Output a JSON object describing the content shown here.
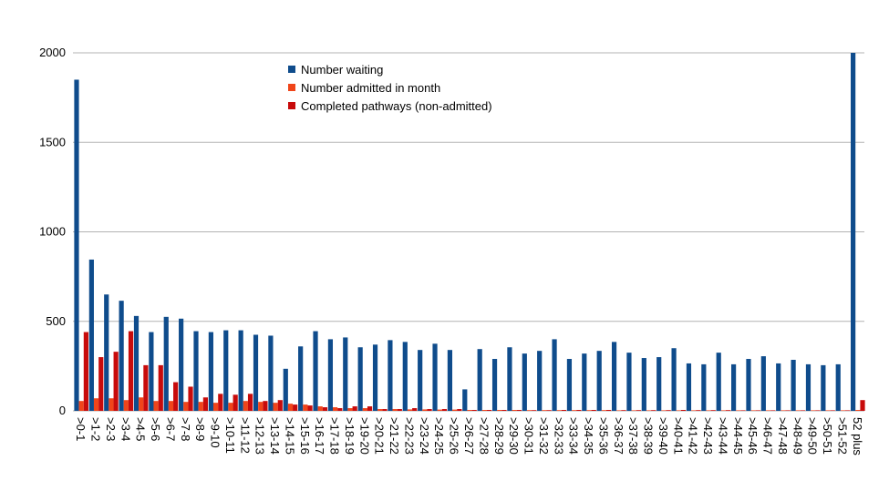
{
  "chart_data": {
    "type": "bar",
    "ylim": [
      0,
      2000
    ],
    "yticks": [
      "0",
      "500",
      "1000",
      "1500",
      "2000"
    ],
    "grid": true,
    "legend_position": "top-center",
    "categories": [
      ">0-1",
      ">1-2",
      ">2-3",
      ">3-4",
      ">4-5",
      ">5-6",
      ">6-7",
      ">7-8",
      ">8-9",
      ">9-10",
      ">10-11",
      ">11-12",
      ">12-13",
      ">13-14",
      ">14-15",
      ">15-16",
      ">16-17",
      ">17-18",
      ">18-19",
      ">19-20",
      ">20-21",
      ">21-22",
      ">22-23",
      ">23-24",
      ">24-25",
      ">25-26",
      ">26-27",
      ">27-28",
      ">28-29",
      ">29-30",
      ">30-31",
      ">31-32",
      ">32-33",
      ">33-34",
      ">34-35",
      ">35-36",
      ">36-37",
      ">37-38",
      ">38-39",
      ">39-40",
      ">40-41",
      ">41-42",
      ">42-43",
      ">43-44",
      ">44-45",
      ">45-46",
      ">46-47",
      ">47-48",
      ">48-49",
      ">49-50",
      ">50-51",
      ">51-52",
      "52 plus"
    ],
    "series": [
      {
        "name": "Number waiting",
        "color": "#0f4c8c",
        "values": [
          1850,
          845,
          650,
          615,
          530,
          440,
          525,
          515,
          445,
          440,
          450,
          450,
          425,
          420,
          235,
          360,
          445,
          400,
          410,
          355,
          370,
          395,
          385,
          340,
          375,
          340,
          120,
          345,
          290,
          355,
          320,
          335,
          400,
          290,
          320,
          335,
          385,
          325,
          295,
          300,
          350,
          265,
          260,
          325,
          260,
          290,
          305,
          265,
          285,
          260,
          255,
          260,
          2000
        ]
      },
      {
        "name": "Number admitted in month",
        "color": "#f0451a",
        "values": [
          55,
          70,
          70,
          60,
          75,
          55,
          55,
          50,
          50,
          45,
          45,
          55,
          50,
          45,
          40,
          35,
          25,
          20,
          15,
          15,
          10,
          10,
          8,
          8,
          7,
          7,
          5,
          5,
          5,
          5,
          4,
          4,
          4,
          4,
          4,
          4,
          3,
          3,
          3,
          3,
          3,
          3,
          3,
          3,
          3,
          3,
          3,
          3,
          3,
          3,
          3,
          3,
          5
        ]
      },
      {
        "name": "Completed pathways (non-admitted)",
        "color": "#c80b0b",
        "values": [
          440,
          300,
          330,
          445,
          255,
          255,
          160,
          135,
          75,
          95,
          90,
          95,
          55,
          60,
          35,
          30,
          20,
          15,
          25,
          25,
          10,
          10,
          15,
          10,
          10,
          10,
          5,
          5,
          5,
          5,
          4,
          4,
          5,
          5,
          5,
          5,
          4,
          4,
          4,
          4,
          5,
          4,
          4,
          4,
          3,
          3,
          3,
          3,
          3,
          3,
          3,
          3,
          60
        ]
      }
    ]
  }
}
